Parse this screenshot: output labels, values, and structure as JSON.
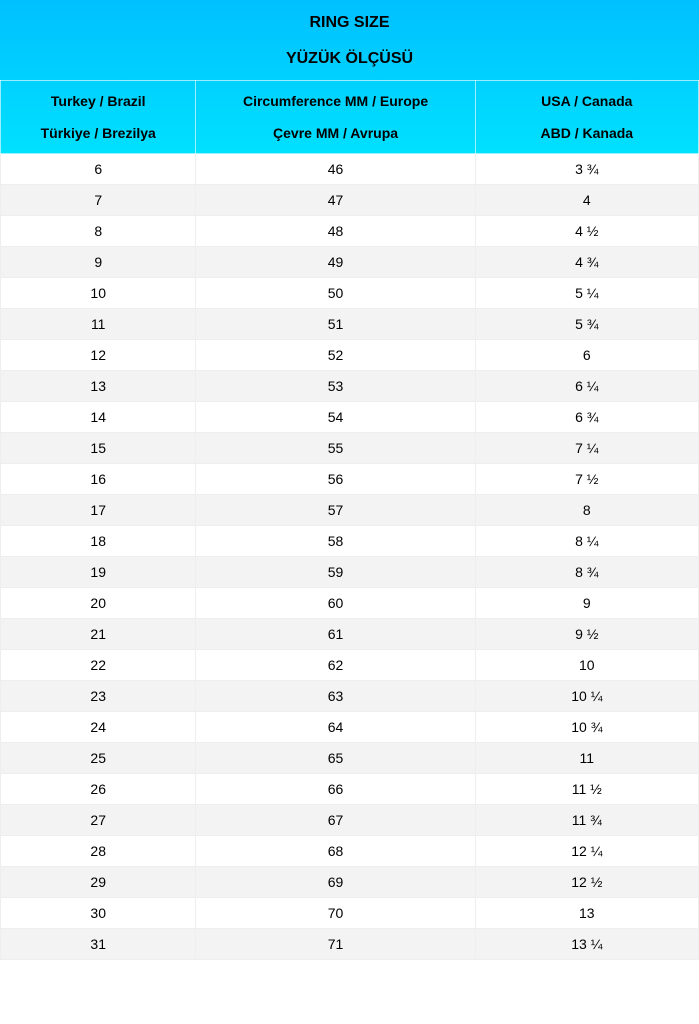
{
  "header": {
    "title": "RING SIZE",
    "subtitle": "YÜZÜK ÖLÇÜSÜ",
    "background_gradient": {
      "from": "#00c0ff",
      "to": "#00e4ff"
    },
    "title_fontsize": 16,
    "title_fontweight": 700,
    "text_color": "#000000"
  },
  "table": {
    "type": "table",
    "columns": [
      {
        "line1": "Turkey / Brazil",
        "line2": "Türkiye / Brezilya",
        "width_pct": 28
      },
      {
        "line1": "Circumference MM / Europe",
        "line2": "Çevre MM / Avrupa",
        "width_pct": 40
      },
      {
        "line1": "USA / Canada",
        "line2": "ABD / Kanada",
        "width_pct": 32
      }
    ],
    "header_fontsize": 14,
    "header_fontweight": 700,
    "header_border_color": "#ffffff",
    "body_fontsize": 14,
    "row_odd_bg": "#ffffff",
    "row_even_bg": "#f3f3f3",
    "border_color": "#eeeeee",
    "rows": [
      [
        "6",
        "46",
        "3 ¾"
      ],
      [
        "7",
        "47",
        "4"
      ],
      [
        "8",
        "48",
        "4 ½"
      ],
      [
        "9",
        "49",
        "4 ¾"
      ],
      [
        "10",
        "50",
        "5 ¼"
      ],
      [
        "11",
        "51",
        "5 ¾"
      ],
      [
        "12",
        "52",
        "6"
      ],
      [
        "13",
        "53",
        "6 ¼"
      ],
      [
        "14",
        "54",
        "6 ¾"
      ],
      [
        "15",
        "55",
        "7 ¼"
      ],
      [
        "16",
        "56",
        "7 ½"
      ],
      [
        "17",
        "57",
        "8"
      ],
      [
        "18",
        "58",
        "8 ¼"
      ],
      [
        "19",
        "59",
        "8 ¾"
      ],
      [
        "20",
        "60",
        "9"
      ],
      [
        "21",
        "61",
        "9 ½"
      ],
      [
        "22",
        "62",
        "10"
      ],
      [
        "23",
        "63",
        "10 ¼"
      ],
      [
        "24",
        "64",
        "10 ¾"
      ],
      [
        "25",
        "65",
        "11"
      ],
      [
        "26",
        "66",
        "11 ½"
      ],
      [
        "27",
        "67",
        "11 ¾"
      ],
      [
        "28",
        "68",
        "12 ¼"
      ],
      [
        "29",
        "69",
        "12 ½"
      ],
      [
        "30",
        "70",
        "13"
      ],
      [
        "31",
        "71",
        "13 ¼"
      ]
    ]
  }
}
